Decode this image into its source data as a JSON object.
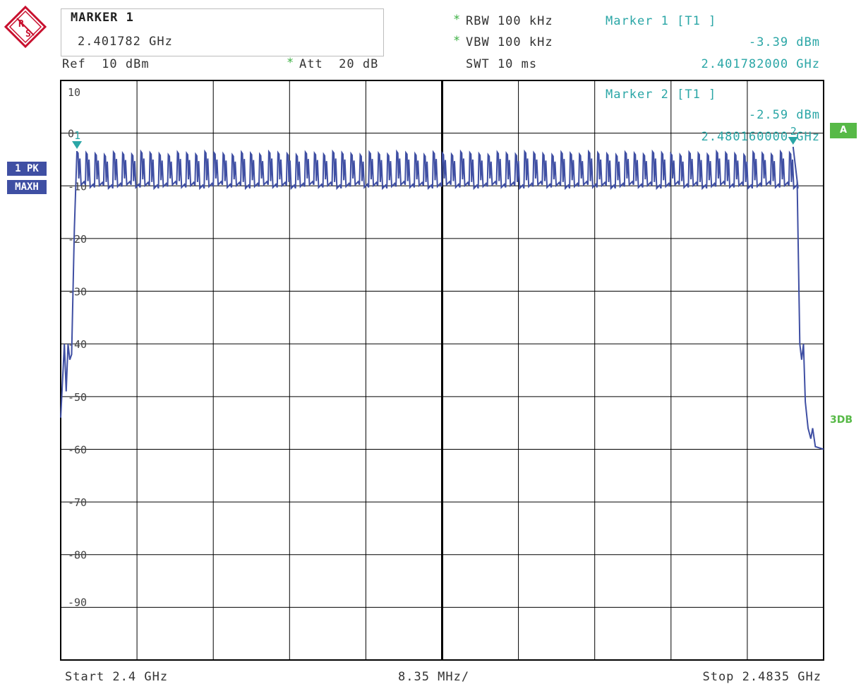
{
  "header": {
    "marker_title": "MARKER 1",
    "marker_value": "2.401782 GHz",
    "ref": "Ref  10 dBm",
    "att": "Att  20 dB",
    "rbw": "RBW 100 kHz",
    "vbw": "VBW 100 kHz",
    "swt": "SWT 10 ms",
    "marker1_label": "Marker 1 [T1 ]",
    "marker1_level": "-3.39 dBm",
    "marker1_freq": "2.401782000 GHz",
    "marker2_label": "Marker 2 [T1 ]",
    "marker2_level": "-2.59 dBm",
    "marker2_freq": "2.480160000 GHz",
    "star": "*"
  },
  "side": {
    "trace_pk": "1 PK",
    "trace_maxh": "MAXH",
    "badge_a": "A",
    "label_3db": "3DB"
  },
  "footer": {
    "start": "Start 2.4 GHz",
    "span": "8.35 MHz/",
    "stop": "Stop 2.4835 GHz"
  },
  "colors": {
    "trace": "#3f4fa3",
    "marker": "#2aa6a6",
    "grid": "#000000"
  },
  "chart_data": {
    "type": "line",
    "x_unit": "GHz",
    "y_unit": "dBm",
    "xlim": [
      2.4,
      2.4835
    ],
    "ylim": [
      -100,
      10
    ],
    "y_tick_labels": [
      "10",
      "0",
      "-10",
      "-20",
      "-30",
      "-40",
      "-50",
      "-60",
      "-70",
      "-80",
      "-90"
    ],
    "y_tick_values": [
      10,
      0,
      -10,
      -20,
      -30,
      -40,
      -50,
      -60,
      -70,
      -80,
      -90
    ],
    "grid": true,
    "series": [
      {
        "edge_points": [
          [
            2.4,
            -54
          ],
          [
            2.4004,
            -40
          ],
          [
            2.4006,
            -49
          ],
          [
            2.4008,
            -40
          ],
          [
            2.401,
            -43
          ],
          [
            2.4012,
            -42
          ],
          [
            2.4015,
            -18
          ],
          [
            2.40178,
            -3.4
          ]
        ],
        "channel_start": 2.40178,
        "channel_spacing": 0.001,
        "channel_count": 79,
        "peak_level": -3.5,
        "valley_level": -9.8,
        "tail_points": [
          [
            2.48016,
            -2.6
          ],
          [
            2.4806,
            -9
          ],
          [
            2.4809,
            -40
          ],
          [
            2.4811,
            -43
          ],
          [
            2.4813,
            -40
          ],
          [
            2.4815,
            -51
          ],
          [
            2.4818,
            -56
          ],
          [
            2.4821,
            -58
          ],
          [
            2.4823,
            -56
          ],
          [
            2.4826,
            -59.5
          ],
          [
            2.4835,
            -60
          ]
        ]
      }
    ],
    "markers": [
      {
        "label": "1",
        "x": 2.401782,
        "y": -3.39
      },
      {
        "label": "2",
        "x": 2.48016,
        "y": -2.59
      }
    ]
  }
}
